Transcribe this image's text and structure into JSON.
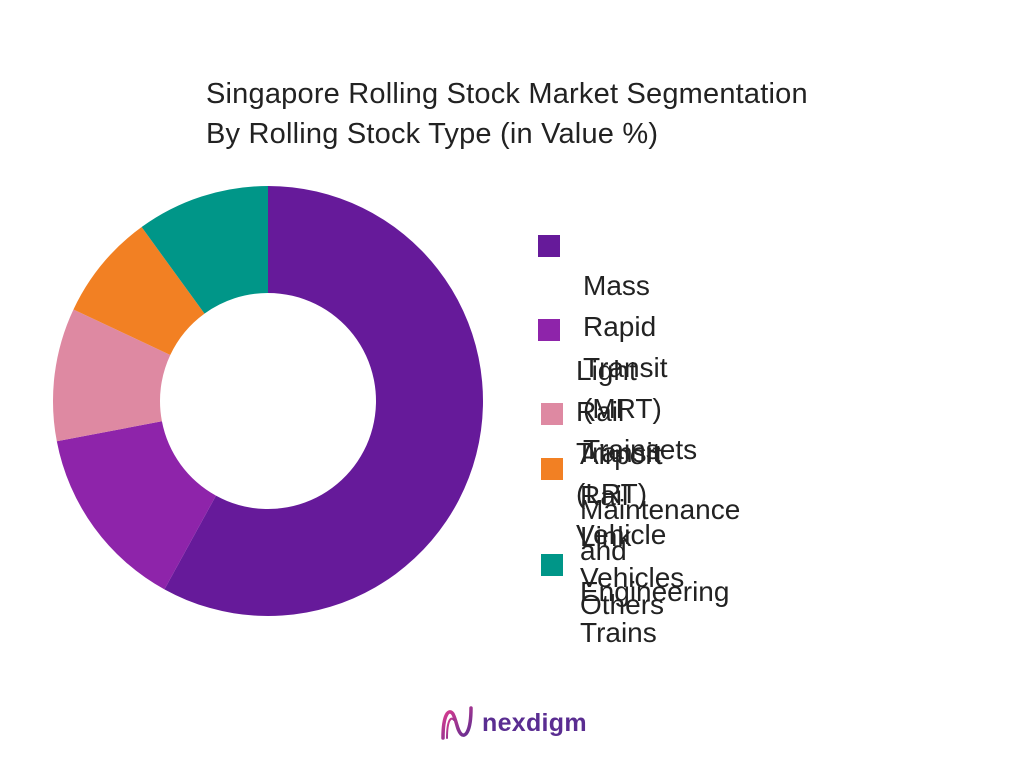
{
  "chart_data": {
    "type": "pie",
    "title": "Singapore Rolling Stock Market Segmentation",
    "subtitle": "By Rolling Stock Type (in Value %)",
    "categories": [
      "Mass Rapid Transit (MRT) Trainsets",
      "Light Rail Transit (LRT) Vehicle",
      "Airport Rail Link Vehicles",
      "Maintenance and Engineering Trains",
      "Others"
    ],
    "values": [
      58,
      14,
      10,
      8,
      10
    ],
    "colors": [
      "#661a9a",
      "#8e24aa",
      "#de89a2",
      "#f28023",
      "#009688"
    ],
    "donut": true,
    "legend_position": "right"
  },
  "legend": [
    {
      "line1": "Mass Rapid Transit (MRT)",
      "line2": "Trainsets"
    },
    {
      "line1": "Light Rail Transit (LRT)",
      "line2": "Vehicle"
    },
    {
      "line1": "Airport Rail Link Vehicles",
      "line2": ""
    },
    {
      "line1": "Maintenance and",
      "line2": "Engineering Trains"
    },
    {
      "line1": "Others",
      "line2": ""
    }
  ],
  "brand": {
    "name": "nexdigm",
    "icon": "nexdigm-logo-icon",
    "color": "#5a2d91"
  }
}
